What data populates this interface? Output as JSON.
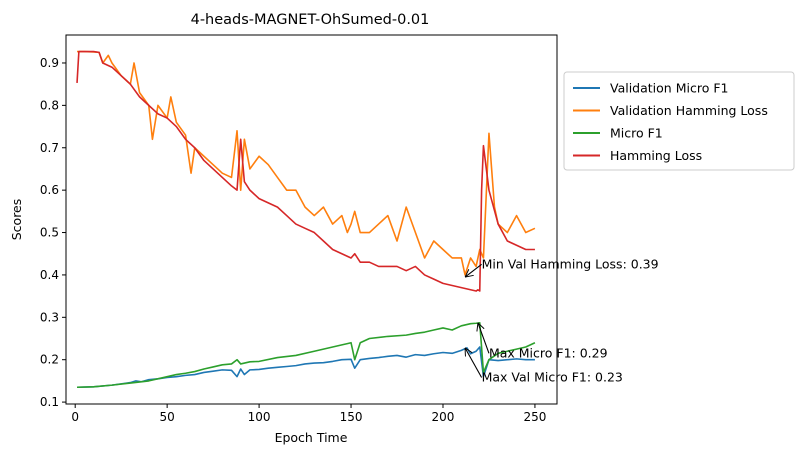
{
  "chart_data": {
    "type": "line",
    "title": "4-heads-MAGNET-OhSumed-0.01",
    "xlabel": "Epoch Time",
    "ylabel": "Scores",
    "xlim": [
      -5,
      262
    ],
    "ylim": [
      0.0955,
      0.966
    ],
    "xticks": [
      0,
      50,
      100,
      150,
      200,
      250
    ],
    "yticks": [
      0.1,
      0.2,
      0.3,
      0.4,
      0.5,
      0.6,
      0.7,
      0.8,
      0.9
    ],
    "legend_position": "right, outside",
    "grid": false,
    "series": [
      {
        "name": "Validation Micro F1",
        "color": "#1f77b4",
        "x": [
          1,
          10,
          20,
          30,
          33,
          36,
          40,
          45,
          50,
          55,
          60,
          65,
          70,
          75,
          80,
          85,
          88,
          90,
          92,
          95,
          100,
          105,
          110,
          115,
          120,
          125,
          130,
          135,
          140,
          145,
          150,
          152,
          155,
          160,
          165,
          170,
          175,
          180,
          185,
          190,
          195,
          200,
          205,
          210,
          213,
          215,
          218,
          220,
          222,
          225,
          230,
          235,
          240,
          245,
          250
        ],
        "y": [
          0.135,
          0.136,
          0.14,
          0.146,
          0.15,
          0.148,
          0.153,
          0.155,
          0.158,
          0.16,
          0.163,
          0.165,
          0.17,
          0.173,
          0.176,
          0.175,
          0.16,
          0.178,
          0.165,
          0.176,
          0.177,
          0.18,
          0.182,
          0.184,
          0.186,
          0.19,
          0.192,
          0.193,
          0.196,
          0.2,
          0.201,
          0.18,
          0.2,
          0.203,
          0.205,
          0.208,
          0.21,
          0.206,
          0.212,
          0.21,
          0.214,
          0.217,
          0.215,
          0.222,
          0.228,
          0.214,
          0.22,
          0.23,
          0.16,
          0.2,
          0.198,
          0.2,
          0.202,
          0.2,
          0.2
        ]
      },
      {
        "name": "Validation Hamming Loss",
        "color": "#ff7f0e",
        "x": [
          1,
          5,
          10,
          13,
          15,
          18,
          20,
          25,
          30,
          32,
          35,
          40,
          42,
          45,
          50,
          52,
          55,
          60,
          63,
          65,
          70,
          75,
          80,
          85,
          88,
          90,
          92,
          95,
          100,
          105,
          110,
          115,
          120,
          125,
          130,
          135,
          140,
          145,
          148,
          150,
          152,
          155,
          160,
          165,
          170,
          175,
          180,
          185,
          190,
          195,
          200,
          205,
          210,
          212,
          215,
          218,
          220,
          222,
          225,
          228,
          230,
          235,
          240,
          245,
          250
        ],
        "y": [
          0.927,
          0.927,
          0.926,
          0.925,
          0.9,
          0.918,
          0.9,
          0.87,
          0.85,
          0.9,
          0.83,
          0.8,
          0.72,
          0.8,
          0.77,
          0.82,
          0.76,
          0.73,
          0.64,
          0.7,
          0.68,
          0.66,
          0.64,
          0.63,
          0.74,
          0.6,
          0.72,
          0.65,
          0.68,
          0.66,
          0.63,
          0.6,
          0.6,
          0.56,
          0.54,
          0.56,
          0.52,
          0.54,
          0.5,
          0.52,
          0.55,
          0.5,
          0.5,
          0.52,
          0.54,
          0.48,
          0.56,
          0.5,
          0.44,
          0.48,
          0.46,
          0.44,
          0.44,
          0.4,
          0.44,
          0.42,
          0.46,
          0.44,
          0.734,
          0.56,
          0.52,
          0.5,
          0.54,
          0.5,
          0.51
        ]
      },
      {
        "name": "Micro F1",
        "color": "#2ca02c",
        "x": [
          1,
          10,
          20,
          30,
          40,
          50,
          55,
          60,
          65,
          70,
          75,
          80,
          85,
          88,
          90,
          95,
          100,
          110,
          120,
          130,
          140,
          145,
          148,
          150,
          152,
          155,
          160,
          170,
          180,
          185,
          190,
          195,
          200,
          205,
          210,
          215,
          218,
          220,
          222,
          225,
          230,
          235,
          240,
          245,
          250
        ],
        "y": [
          0.135,
          0.136,
          0.14,
          0.145,
          0.15,
          0.16,
          0.165,
          0.168,
          0.172,
          0.178,
          0.183,
          0.188,
          0.19,
          0.2,
          0.19,
          0.195,
          0.196,
          0.205,
          0.21,
          0.22,
          0.23,
          0.235,
          0.238,
          0.24,
          0.2,
          0.24,
          0.25,
          0.255,
          0.258,
          0.262,
          0.265,
          0.27,
          0.275,
          0.27,
          0.28,
          0.285,
          0.286,
          0.287,
          0.17,
          0.2,
          0.215,
          0.22,
          0.225,
          0.23,
          0.24
        ]
      },
      {
        "name": "Hamming Loss",
        "color": "#d62728",
        "x": [
          1,
          2,
          5,
          10,
          13,
          15,
          20,
          25,
          30,
          35,
          40,
          45,
          50,
          55,
          60,
          65,
          70,
          75,
          80,
          85,
          88,
          90,
          92,
          95,
          100,
          105,
          110,
          115,
          120,
          125,
          130,
          135,
          140,
          145,
          150,
          152,
          155,
          160,
          165,
          170,
          175,
          180,
          185,
          190,
          195,
          200,
          205,
          210,
          215,
          218,
          219,
          220,
          221,
          222,
          225,
          230,
          235,
          240,
          245,
          250
        ],
        "y": [
          0.853,
          0.927,
          0.927,
          0.927,
          0.925,
          0.9,
          0.89,
          0.87,
          0.85,
          0.82,
          0.8,
          0.78,
          0.77,
          0.75,
          0.72,
          0.7,
          0.67,
          0.65,
          0.63,
          0.61,
          0.6,
          0.72,
          0.62,
          0.6,
          0.58,
          0.57,
          0.56,
          0.54,
          0.52,
          0.51,
          0.5,
          0.48,
          0.46,
          0.45,
          0.44,
          0.45,
          0.43,
          0.43,
          0.42,
          0.42,
          0.42,
          0.41,
          0.42,
          0.4,
          0.39,
          0.38,
          0.375,
          0.37,
          0.365,
          0.362,
          0.365,
          0.362,
          0.6,
          0.705,
          0.6,
          0.52,
          0.48,
          0.47,
          0.46,
          0.46
        ]
      }
    ],
    "annotations": [
      {
        "text": "Min Val Hamming Loss: 0.39",
        "target": [
          212,
          0.395
        ],
        "text_pos": [
          221,
          0.425
        ]
      },
      {
        "text": "Max Micro F1: 0.29",
        "target": [
          219,
          0.287
        ],
        "text_pos": [
          225,
          0.215
        ]
      },
      {
        "text": "Max Val Micro F1: 0.23",
        "target": [
          212,
          0.228
        ],
        "text_pos": [
          221,
          0.158
        ]
      }
    ]
  }
}
